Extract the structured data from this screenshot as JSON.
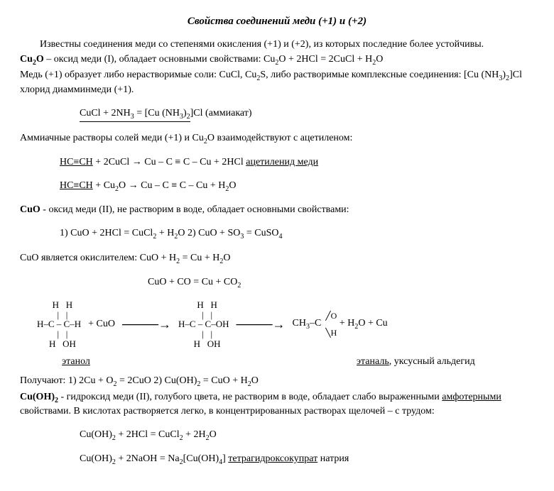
{
  "title": "Свойства соединений меди (+1) и (+2)",
  "p1": "Известны соединения меди со степенями окисления (+1) и (+2), из которых последние более устойчивы.",
  "p2a": "Cu",
  "p2a_sub": "2",
  "p2b": "O",
  "p2c": " – оксид меди (I), обладает основными свойствами: Cu",
  "p2d_sub": "2",
  "p2e": "O + 2HCl = 2CuCl + H",
  "p2f_sub": "2",
  "p2g": "O",
  "p3a": "Медь (+1) образует либо нерастворимые соли: CuCl,  Cu",
  "p3b_sub": "2",
  "p3c": "S, либо растворимые комплексные соединения:  [Cu (NH",
  "p3d_sub": "3",
  "p3e": ")",
  "p3f_sub": "2",
  "p3g": "]Cl  хлорид диамминмеди (+1).",
  "p4a": "CuCl + 2NH",
  "p4b_sub": "3",
  "p4c": " =   [Cu (NH",
  "p4d_sub": "3",
  "p4e": ")",
  "p4f_sub": "2",
  "p4g": "]Cl   (аммиакат)",
  "p5": "Аммиачные растворы солей меди (+1) и Cu",
  "p5b_sub": "2",
  "p5c": "O взаимодействуют с ацетиленом:",
  "p6a": "HC≡CH",
  "p6b": "  + 2CuCl → Cu – C ≡ C – Cu  + 2HCl ",
  "p6c": "ацетиленид меди",
  "p7a": "HC≡CH",
  "p7b": "  + Cu",
  "p7c_sub": "2",
  "p7d": "O → Cu – C ≡ C – Cu  + H",
  "p7e_sub": "2",
  "p7f": "O",
  "p8a": "CuO",
  "p8b": " - оксид меди (II), не растворим в воде, обладает основными свойствами:",
  "p9": "1)  CuO + 2HCl = CuCl",
  "p9b_sub": "2",
  "p9c": " + H",
  "p9d_sub": "2",
  "p9e": "O     2) CuO + SO",
  "p9f_sub": "3",
  "p9g": " = CuSO",
  "p9h_sub": "4",
  "p10a": "CuO является окислителем: CuO + H",
  "p10b_sub": "2",
  "p10c": " = Cu + H",
  "p10d_sub": "2",
  "p10e": "O",
  "p11": "CuO + CO = Cu + CO",
  "p11b_sub": "2",
  "mol1": "   H   H\n   |   |\nH–C – C–H\n   |   |\n   H   OH",
  "plus_cuo": "+  CuO",
  "arrow": "────→",
  "mol2": "   H   H\n   |   |\nH–C – C–OH\n   |   |\n   H   OH",
  "arrow2": "────→",
  "ald_main": "CH",
  "ald_sub": "3",
  "ald_mid": "–C",
  "ald_o": "O",
  "ald_h": "H",
  "tail": "  + H",
  "tail_sub": "2",
  "tail2": "O + Cu",
  "lbl_ethanol": "этанол",
  "lbl_ethanal": "этаналь",
  "lbl_ethanal2": ", уксусный альдегид",
  "p12a": "Получают: 1) 2Cu + O",
  "p12b_sub": "2",
  "p12c": " = 2CuO     2) Cu(OH)",
  "p12d_sub": "2",
  "p12e": " = CuO + H",
  "p12f_sub": "2",
  "p12g": "O",
  "p13a": "Cu(OH)",
  "p13b_sub": "2",
  "p13c": " - гидроксид меди (II), голубого цвета, не растворим в воде, обладает слабо выраженными ",
  "p13d": "амфотерными",
  "p13e": " свойствами. В кислотах растворяется легко, в концентрированных растворах щелочей – с трудом:",
  "p14a": "Cu(OH)",
  "p14b_sub": "2",
  "p14c": " + 2HCl = CuCl",
  "p14d_sub": "2",
  "p14e": " + 2H",
  "p14f_sub": "2",
  "p14g": "O",
  "p15a": "Cu(OH)",
  "p15b_sub": "2",
  "p15c": " + 2NaOH = Na",
  "p15d_sub": "2",
  "p15e": "[Cu(OH)",
  "p15f_sub": "4",
  "p15g": "] ",
  "p15h": "тетрагидроксокупрат",
  "p15i": " натрия"
}
